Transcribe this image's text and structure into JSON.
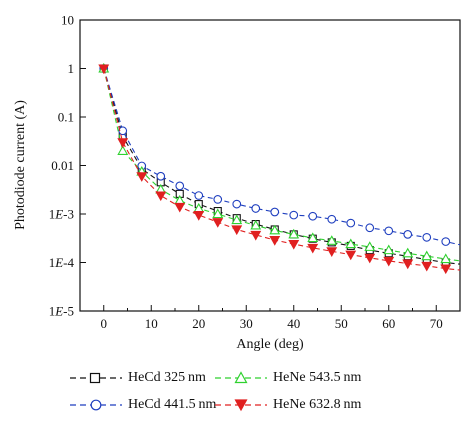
{
  "chart_data": {
    "type": "line",
    "xlabel": "Angle (deg)",
    "ylabel": "Photodiode current (A)",
    "xlim": [
      -5,
      75
    ],
    "ylim": [
      1e-05,
      10
    ],
    "y_scale": "log",
    "x_ticks": [
      0,
      10,
      20,
      30,
      40,
      50,
      60,
      70
    ],
    "x_tick_labels": [
      "0",
      "10",
      "20",
      "30",
      "40",
      "50",
      "60",
      "70"
    ],
    "y_ticks": [
      1e-05,
      0.0001,
      0.001,
      0.01,
      0.1,
      1,
      10
    ],
    "y_tick_labels": [
      "1E-5",
      "1E-4",
      "1E-3",
      "0.01",
      "0.1",
      "1",
      "10"
    ],
    "grid": false,
    "legend_position": "bottom",
    "series": [
      {
        "name": "HeCd 325 nm",
        "color": "#111111",
        "marker": "square",
        "x": [
          0,
          4,
          8,
          12,
          16,
          20,
          24,
          28,
          32,
          36,
          40,
          44,
          48,
          52,
          56,
          60,
          64,
          68,
          72,
          76
        ],
        "y": [
          1.0,
          0.04,
          0.0085,
          0.0045,
          0.0026,
          0.0016,
          0.00115,
          0.00082,
          0.00062,
          0.00048,
          0.00038,
          0.00031,
          0.00026,
          0.00022,
          0.00018,
          0.000155,
          0.000135,
          0.000115,
          0.0001,
          9e-05
        ]
      },
      {
        "name": "HeCd 441.5 nm",
        "color": "#1f3fbf",
        "marker": "circle",
        "x": [
          0,
          4,
          8,
          12,
          16,
          20,
          24,
          28,
          32,
          36,
          40,
          44,
          48,
          52,
          56,
          60,
          64,
          68,
          72,
          76
        ],
        "y": [
          1.0,
          0.052,
          0.0098,
          0.006,
          0.0038,
          0.0024,
          0.002,
          0.0016,
          0.0013,
          0.0011,
          0.00095,
          0.0009,
          0.00078,
          0.00065,
          0.00052,
          0.00045,
          0.00038,
          0.00033,
          0.00027,
          0.00022
        ]
      },
      {
        "name": "HeNe 543.5 nm",
        "color": "#2fd12f",
        "marker": "triangle-up",
        "x": [
          0,
          4,
          8,
          12,
          16,
          20,
          24,
          28,
          32,
          36,
          40,
          44,
          48,
          52,
          56,
          60,
          64,
          68,
          72,
          76
        ],
        "y": [
          1.0,
          0.02,
          0.0075,
          0.0032,
          0.0019,
          0.0013,
          0.001,
          0.00075,
          0.00058,
          0.00046,
          0.00038,
          0.00032,
          0.00028,
          0.00024,
          0.00021,
          0.00018,
          0.000155,
          0.000135,
          0.000118,
          0.000105
        ]
      },
      {
        "name": "HeNe 632.8 nm",
        "color": "#e02020",
        "marker": "triangle-down",
        "x": [
          0,
          4,
          8,
          12,
          16,
          20,
          24,
          28,
          32,
          36,
          40,
          44,
          48,
          52,
          56,
          60,
          64,
          68,
          72,
          76
        ],
        "y": [
          1.0,
          0.03,
          0.006,
          0.0024,
          0.0014,
          0.00095,
          0.00068,
          0.00048,
          0.00037,
          0.00029,
          0.00024,
          0.0002,
          0.00017,
          0.000145,
          0.000125,
          0.000108,
          9.5e-05,
          8.5e-05,
          7.5e-05,
          6.8e-05
        ]
      }
    ]
  },
  "legend": {
    "items": [
      {
        "label": "HeCd 325 nm"
      },
      {
        "label": "HeNe 543.5 nm"
      },
      {
        "label": "HeCd 441.5 nm"
      },
      {
        "label": "HeNe 632.8 nm"
      }
    ]
  }
}
